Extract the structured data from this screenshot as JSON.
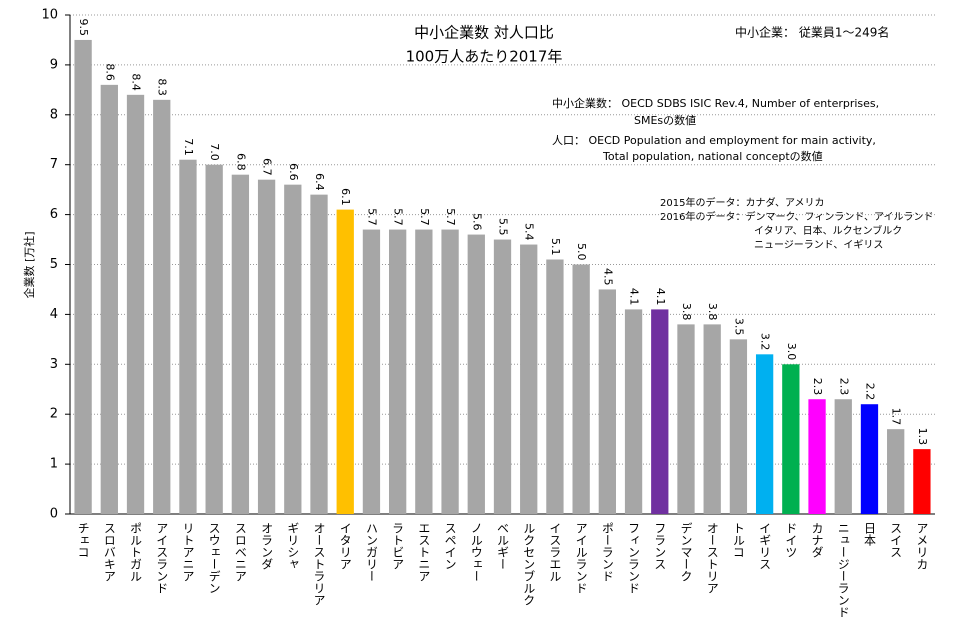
{
  "chart_data": {
    "type": "bar",
    "title": "中小企業数 対人口比",
    "subtitle": "100万人あたり2017年",
    "y_label": "企業数 [万社]",
    "annotations": [
      "中小企業： 従業員1～249名",
      "中小企業数： OECD SDBS ISIC Rev.4, Number of enterprises,",
      "SMEsの数値",
      "人口： OECD Population and employment for main activity,",
      "Total population, national conceptの数値",
      "2015年のデータ：カナダ、アメリカ",
      "2016年のデータ：デンマーク、フィンランド、アイルランド",
      "イタリア、日本、ルクセンブルク",
      "ニュージーランド、イギリス"
    ],
    "categories": [
      "チェコ",
      "スロバキア",
      "ポルトガル",
      "アイスランド",
      "リトアニア",
      "スウェーデン",
      "スロベニア",
      "オランダ",
      "ギリシャ",
      "オーストラリア",
      "イタリア",
      "ハンガリー",
      "ラトビア",
      "エストニア",
      "スペイン",
      "ノルウェー",
      "ベルギー",
      "ルクセンブルク",
      "イスラエル",
      "アイルランド",
      "ポーランド",
      "フィンランド",
      "フランス",
      "デンマーク",
      "オーストリア",
      "トルコ",
      "イギリス",
      "ドイツ",
      "カナダ",
      "ニュージーランド",
      "日本",
      "スイス",
      "アメリカ"
    ],
    "values": [
      9.5,
      8.6,
      8.4,
      8.3,
      7.1,
      7.0,
      6.8,
      6.7,
      6.6,
      6.4,
      6.1,
      5.7,
      5.7,
      5.7,
      5.7,
      5.6,
      5.5,
      5.4,
      5.1,
      5.0,
      4.5,
      4.1,
      4.1,
      3.8,
      3.8,
      3.5,
      3.2,
      3.0,
      2.3,
      2.3,
      2.2,
      1.7,
      1.3
    ],
    "value_labels": [
      "9.5",
      "8.6",
      "8.4",
      "8.3",
      "7.1",
      "7.0",
      "6.8",
      "6.7",
      "6.6",
      "6.4",
      "6.1",
      "5.7",
      "5.7",
      "5.7",
      "5.7",
      "5.6",
      "5.5",
      "5.4",
      "5.1",
      "5.0",
      "4.5",
      "4.1",
      "4.1",
      "3.8",
      "3.8",
      "3.5",
      "3.2",
      "3.0",
      "2.3",
      "2.3",
      "2.2",
      "1.7",
      "1.3"
    ],
    "colors": [
      "#a6a6a6",
      "#a6a6a6",
      "#a6a6a6",
      "#a6a6a6",
      "#a6a6a6",
      "#a6a6a6",
      "#a6a6a6",
      "#a6a6a6",
      "#a6a6a6",
      "#a6a6a6",
      "#ffc000",
      "#a6a6a6",
      "#a6a6a6",
      "#a6a6a6",
      "#a6a6a6",
      "#a6a6a6",
      "#a6a6a6",
      "#a6a6a6",
      "#a6a6a6",
      "#a6a6a6",
      "#a6a6a6",
      "#a6a6a6",
      "#7030a0",
      "#a6a6a6",
      "#a6a6a6",
      "#a6a6a6",
      "#00b0f0",
      "#00b050",
      "#ff00ff",
      "#a6a6a6",
      "#0000ff",
      "#a6a6a6",
      "#ff0000"
    ],
    "ylim": [
      0,
      10
    ],
    "yticks": [
      0,
      1,
      2,
      3,
      4,
      5,
      6,
      7,
      8,
      9,
      10
    ],
    "grid": true
  }
}
